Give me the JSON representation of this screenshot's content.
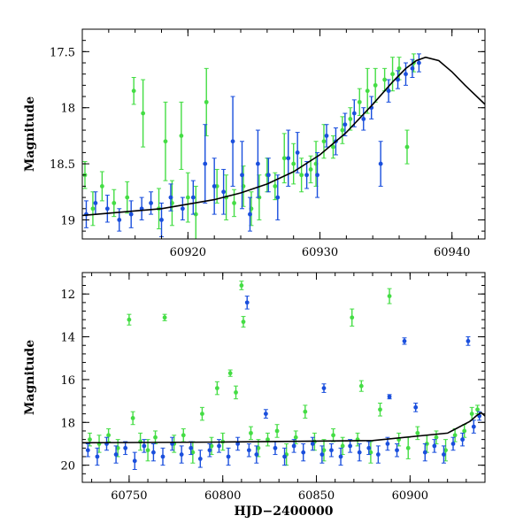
{
  "chart_data": [
    {
      "type": "scatter",
      "title": "",
      "xlabel": "",
      "ylabel": "Magnitude",
      "xlim": [
        60912,
        60942.5
      ],
      "ylim": [
        19.17,
        17.3
      ],
      "y_inverted": true,
      "grid": false,
      "xticks": [
        60920,
        60930,
        60940
      ],
      "xtick_labels": [
        "60920",
        "60930",
        "60940"
      ],
      "yticks": [
        17.5,
        18,
        18.5,
        19
      ],
      "ytick_labels": [
        "17.5",
        "18",
        "18.5",
        "19"
      ],
      "colors": {
        "green": "#44dd44",
        "blue": "#1a4fdd",
        "model": "#000000"
      },
      "model_curve": {
        "x": [
          60912,
          60914,
          60916,
          60918,
          60920,
          60922,
          60924,
          60926,
          60928,
          60930,
          60932,
          60934,
          60935.5,
          60936.5,
          60937.3,
          60938,
          60939,
          60940,
          60941,
          60942.5
        ],
        "y": [
          18.96,
          18.94,
          18.92,
          18.9,
          18.86,
          18.82,
          18.76,
          18.68,
          18.57,
          18.42,
          18.22,
          17.97,
          17.77,
          17.65,
          17.58,
          17.55,
          17.58,
          17.68,
          17.8,
          17.97
        ]
      },
      "series": [
        {
          "color": "green",
          "x": [
            60912.2,
            60912.8,
            60913.5,
            60914.4,
            60915.4,
            60915.9,
            60916.6,
            60917.8,
            60918.3,
            60918.8,
            60919.5,
            60920.0,
            60920.6,
            60921.4,
            60922.2,
            60922.9,
            60923.5,
            60924.2,
            60924.8,
            60925.4,
            60926.0,
            60926.6,
            60927.3,
            60928.0,
            60928.6,
            60929.3,
            60929.7,
            60930.3,
            60931.0,
            60931.7,
            60932.3,
            60933.0,
            60933.6,
            60934.2,
            60934.9,
            60935.5,
            60936.0,
            60936.6,
            60937.1
          ],
          "y": [
            18.6,
            18.9,
            18.7,
            18.85,
            18.8,
            17.85,
            18.05,
            18.9,
            18.3,
            18.85,
            18.25,
            18.8,
            18.95,
            17.95,
            18.7,
            18.8,
            18.85,
            18.7,
            18.9,
            18.8,
            18.6,
            18.7,
            18.45,
            18.5,
            18.6,
            18.55,
            18.5,
            18.3,
            18.35,
            18.2,
            18.1,
            17.95,
            17.85,
            17.8,
            17.75,
            17.7,
            17.65,
            18.35,
            17.6
          ],
          "err": [
            0.12,
            0.15,
            0.13,
            0.12,
            0.14,
            0.12,
            0.3,
            0.18,
            0.35,
            0.2,
            0.3,
            0.22,
            0.25,
            0.3,
            0.15,
            0.2,
            0.12,
            0.18,
            0.15,
            0.2,
            0.15,
            0.12,
            0.22,
            0.18,
            0.15,
            0.12,
            0.2,
            0.15,
            0.1,
            0.12,
            0.1,
            0.12,
            0.2,
            0.15,
            0.1,
            0.15,
            0.1,
            0.15,
            0.08
          ]
        },
        {
          "color": "blue",
          "x": [
            60912.3,
            60913.0,
            60913.9,
            60914.8,
            60915.7,
            60916.5,
            60917.2,
            60918.0,
            60918.7,
            60919.6,
            60920.4,
            60921.3,
            60922.0,
            60922.7,
            60923.4,
            60924.1,
            60924.7,
            60925.3,
            60926.1,
            60926.8,
            60927.6,
            60928.3,
            60929.0,
            60929.8,
            60930.5,
            60931.2,
            60931.9,
            60932.6,
            60933.3,
            60933.9,
            60934.6,
            60935.2,
            60935.9,
            60936.5,
            60937.0,
            60937.5
          ],
          "y": [
            18.95,
            18.85,
            18.9,
            19.0,
            18.95,
            18.9,
            18.85,
            19.0,
            18.8,
            18.9,
            18.8,
            18.5,
            18.7,
            18.75,
            18.3,
            18.6,
            18.95,
            18.5,
            18.6,
            18.8,
            18.45,
            18.4,
            18.6,
            18.6,
            18.25,
            18.3,
            18.15,
            18.05,
            18.1,
            18.0,
            18.5,
            17.85,
            17.75,
            17.7,
            17.65,
            17.6
          ],
          "err": [
            0.12,
            0.1,
            0.12,
            0.1,
            0.12,
            0.1,
            0.1,
            0.15,
            0.12,
            0.1,
            0.15,
            0.35,
            0.25,
            0.2,
            0.4,
            0.3,
            0.15,
            0.3,
            0.15,
            0.2,
            0.25,
            0.18,
            0.12,
            0.2,
            0.1,
            0.12,
            0.1,
            0.12,
            0.1,
            0.1,
            0.2,
            0.1,
            0.08,
            0.1,
            0.08,
            0.08
          ]
        }
      ]
    },
    {
      "type": "scatter",
      "title": "",
      "xlabel": "HJD−2400000",
      "ylabel": "Magnitude",
      "xlim": [
        60725,
        60940
      ],
      "ylim": [
        20.8,
        11.0
      ],
      "y_inverted": true,
      "grid": false,
      "xticks": [
        60750,
        60800,
        60850,
        60900
      ],
      "xtick_labels": [
        "60750",
        "60800",
        "60850",
        "60900"
      ],
      "yticks": [
        12,
        14,
        16,
        18,
        20
      ],
      "ytick_labels": [
        "12",
        "14",
        "16",
        "18",
        "20"
      ],
      "colors": {
        "green": "#44dd44",
        "blue": "#1a4fdd",
        "model": "#000000"
      },
      "model_curve": {
        "x": [
          60725,
          60800,
          60880,
          60920,
          60932,
          60936,
          60938,
          60940
        ],
        "y": [
          18.95,
          18.92,
          18.85,
          18.5,
          17.95,
          17.65,
          17.55,
          17.7
        ]
      },
      "series": [
        {
          "color": "green",
          "x": [
            60729,
            60734,
            60739,
            60744,
            60750,
            60752,
            60756,
            60760,
            60764,
            60769,
            60774,
            60779,
            60784,
            60789,
            60794,
            60797,
            60800,
            60804,
            60807,
            60810,
            60811,
            60815,
            60819,
            60824,
            60829,
            60834,
            60839,
            60844,
            60849,
            60854,
            60859,
            60864,
            60869,
            60872,
            60874,
            60879,
            60884,
            60889,
            60894,
            60899,
            60904,
            60909,
            60914,
            60919,
            60924,
            60929,
            60933,
            60936
          ],
          "y": [
            18.8,
            19.0,
            18.6,
            19.2,
            13.2,
            17.8,
            18.9,
            19.3,
            18.7,
            13.1,
            19.0,
            18.6,
            19.4,
            17.6,
            19.1,
            16.4,
            18.9,
            15.7,
            16.6,
            11.6,
            13.3,
            18.5,
            19.2,
            18.8,
            18.4,
            19.5,
            18.7,
            17.5,
            18.9,
            19.3,
            18.6,
            19.1,
            13.1,
            18.8,
            16.3,
            19.4,
            17.4,
            12.1,
            18.8,
            19.2,
            18.5,
            19.0,
            18.7,
            19.3,
            18.6,
            18.4,
            17.6,
            17.4
          ],
          "err": [
            0.3,
            0.4,
            0.3,
            0.4,
            0.25,
            0.3,
            0.4,
            0.5,
            0.3,
            0.15,
            0.4,
            0.3,
            0.5,
            0.3,
            0.4,
            0.3,
            0.4,
            0.15,
            0.3,
            0.2,
            0.25,
            0.3,
            0.4,
            0.3,
            0.3,
            0.5,
            0.3,
            0.3,
            0.4,
            0.5,
            0.3,
            0.4,
            0.4,
            0.3,
            0.25,
            0.5,
            0.3,
            0.35,
            0.3,
            0.5,
            0.3,
            0.4,
            0.3,
            0.5,
            0.3,
            0.3,
            0.3,
            0.2
          ]
        },
        {
          "color": "blue",
          "x": [
            60728,
            60733,
            60738,
            60743,
            60748,
            60753,
            60758,
            60763,
            60768,
            60773,
            60778,
            60783,
            60788,
            60793,
            60798,
            60803,
            60808,
            60813,
            60814,
            60818,
            60823,
            60828,
            60833,
            60838,
            60843,
            60848,
            60853,
            60854,
            60858,
            60863,
            60868,
            60873,
            60878,
            60883,
            60888,
            60889,
            60893,
            60897,
            60903,
            60908,
            60913,
            60918,
            60923,
            60928,
            60931,
            60934,
            60937
          ],
          "y": [
            19.3,
            19.6,
            19.0,
            19.5,
            19.2,
            19.8,
            19.1,
            19.4,
            19.6,
            19.0,
            19.5,
            19.2,
            19.7,
            19.3,
            19.1,
            19.6,
            19.0,
            12.4,
            19.3,
            19.5,
            17.6,
            19.2,
            19.6,
            19.1,
            19.4,
            19.0,
            19.5,
            16.4,
            19.3,
            19.6,
            19.1,
            19.4,
            19.2,
            19.5,
            19.0,
            16.8,
            19.3,
            14.2,
            17.3,
            19.4,
            19.1,
            19.5,
            19.0,
            18.8,
            14.2,
            18.2,
            17.7
          ],
          "err": [
            0.3,
            0.4,
            0.3,
            0.4,
            0.3,
            0.4,
            0.3,
            0.4,
            0.4,
            0.3,
            0.4,
            0.3,
            0.4,
            0.3,
            0.3,
            0.4,
            0.3,
            0.3,
            0.3,
            0.4,
            0.2,
            0.3,
            0.4,
            0.3,
            0.4,
            0.3,
            0.4,
            0.2,
            0.3,
            0.4,
            0.3,
            0.4,
            0.3,
            0.4,
            0.3,
            0.1,
            0.3,
            0.15,
            0.2,
            0.4,
            0.3,
            0.4,
            0.3,
            0.3,
            0.2,
            0.3,
            0.2
          ]
        }
      ]
    }
  ]
}
